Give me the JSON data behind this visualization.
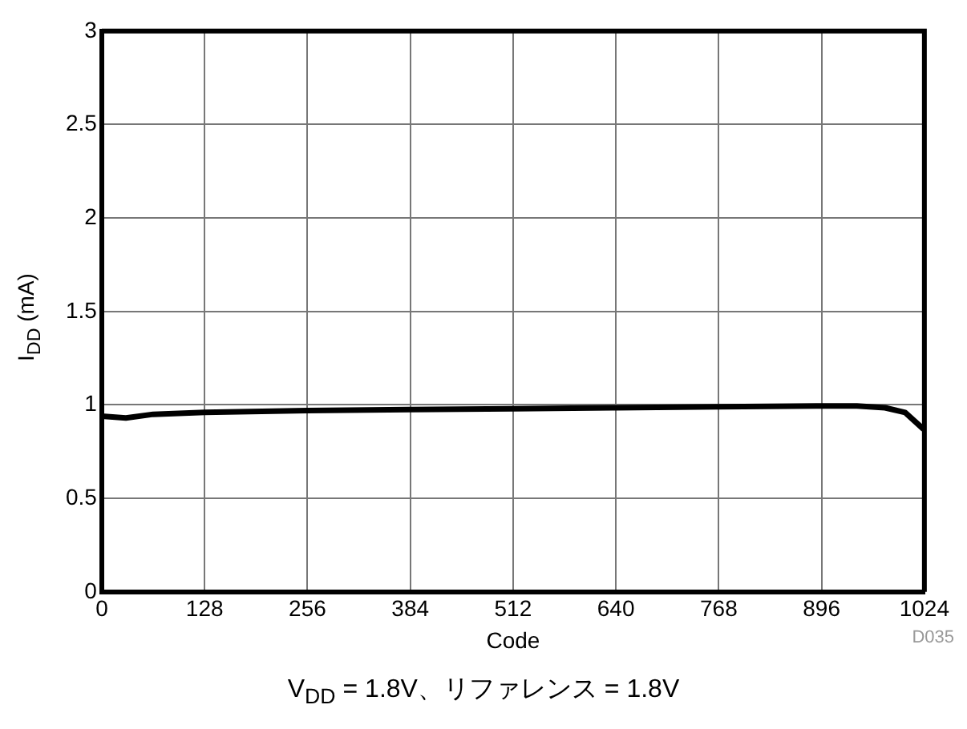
{
  "chart_data": {
    "type": "line",
    "xlabel": "Code",
    "ylabel": "I$_{DD}$ (mA)",
    "x": [
      0,
      30,
      64,
      128,
      256,
      384,
      512,
      640,
      768,
      896,
      940,
      975,
      1000,
      1023
    ],
    "series": [
      {
        "color": "#000000",
        "values": [
          0.94,
          0.93,
          0.95,
          0.96,
          0.97,
          0.975,
          0.98,
          0.985,
          0.99,
          0.995,
          0.995,
          0.985,
          0.96,
          0.87
        ]
      }
    ],
    "xlim": [
      0,
      1024
    ],
    "xticks": [
      0,
      128,
      256,
      384,
      512,
      640,
      768,
      896,
      1024
    ],
    "ylim": [
      0,
      3
    ],
    "yticks": [
      0,
      0.5,
      1,
      1.5,
      2,
      2.5,
      3
    ],
    "grid": true,
    "legend": false,
    "marker": "none",
    "line_style": "solid",
    "annotations": [
      "D035",
      "V$_{DD}$ = 1.8V、リファレンス = 1.8V"
    ]
  }
}
